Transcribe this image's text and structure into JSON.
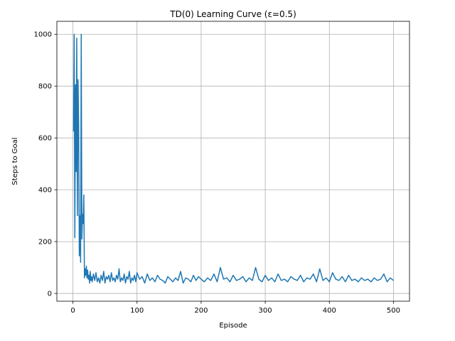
{
  "chart_data": {
    "type": "line",
    "title": "TD(0) Learning Curve (ε=0.5)",
    "xlabel": "Episode",
    "ylabel": "Steps to Goal",
    "xlim": [
      -25,
      525
    ],
    "ylim": [
      -30,
      1050
    ],
    "xticks": [
      0,
      100,
      200,
      300,
      400,
      500
    ],
    "yticks": [
      0,
      200,
      400,
      600,
      800,
      1000
    ],
    "grid": true,
    "series": [
      {
        "color": "#1f77b4",
        "x": [
          1,
          2,
          3,
          4,
          5,
          6,
          7,
          8,
          9,
          10,
          11,
          12,
          13,
          14,
          15,
          16,
          17,
          18,
          19,
          20,
          21,
          22,
          23,
          24,
          25,
          26,
          27,
          28,
          29,
          30,
          32,
          34,
          36,
          38,
          40,
          42,
          44,
          46,
          48,
          50,
          52,
          54,
          56,
          58,
          60,
          62,
          64,
          66,
          68,
          70,
          72,
          74,
          76,
          78,
          80,
          82,
          84,
          86,
          88,
          90,
          92,
          94,
          96,
          98,
          100,
          104,
          108,
          112,
          116,
          120,
          124,
          128,
          132,
          136,
          140,
          144,
          148,
          152,
          156,
          160,
          164,
          168,
          172,
          176,
          180,
          184,
          188,
          192,
          196,
          200,
          205,
          210,
          215,
          220,
          225,
          230,
          235,
          240,
          245,
          250,
          255,
          260,
          265,
          270,
          275,
          280,
          285,
          290,
          295,
          300,
          305,
          310,
          315,
          320,
          325,
          330,
          335,
          340,
          345,
          350,
          355,
          360,
          365,
          370,
          375,
          380,
          385,
          390,
          395,
          400,
          405,
          410,
          415,
          420,
          425,
          430,
          435,
          440,
          445,
          450,
          455,
          460,
          465,
          470,
          475,
          480,
          485,
          490,
          495,
          500
        ],
        "y": [
          625,
          1000,
          215,
          805,
          470,
          985,
          300,
          825,
          650,
          145,
          300,
          120,
          1000,
          210,
          305,
          270,
          380,
          60,
          95,
          70,
          105,
          60,
          90,
          55,
          70,
          40,
          85,
          50,
          65,
          45,
          75,
          50,
          80,
          45,
          60,
          40,
          70,
          50,
          85,
          40,
          65,
          55,
          70,
          45,
          80,
          50,
          60,
          45,
          70,
          55,
          95,
          45,
          60,
          50,
          75,
          40,
          65,
          55,
          85,
          40,
          60,
          50,
          70,
          45,
          80,
          55,
          65,
          40,
          75,
          50,
          60,
          45,
          70,
          55,
          50,
          40,
          65,
          55,
          45,
          60,
          50,
          85,
          40,
          60,
          55,
          45,
          70,
          50,
          65,
          55,
          45,
          60,
          50,
          75,
          45,
          100,
          55,
          60,
          45,
          70,
          50,
          55,
          65,
          45,
          60,
          50,
          100,
          55,
          45,
          70,
          50,
          60,
          45,
          75,
          50,
          55,
          45,
          65,
          55,
          50,
          70,
          45,
          60,
          55,
          75,
          45,
          95,
          50,
          60,
          45,
          80,
          55,
          50,
          65,
          45,
          70,
          50,
          55,
          45,
          60,
          50,
          55,
          45,
          60,
          50,
          55,
          75,
          45,
          60,
          50
        ]
      }
    ]
  }
}
